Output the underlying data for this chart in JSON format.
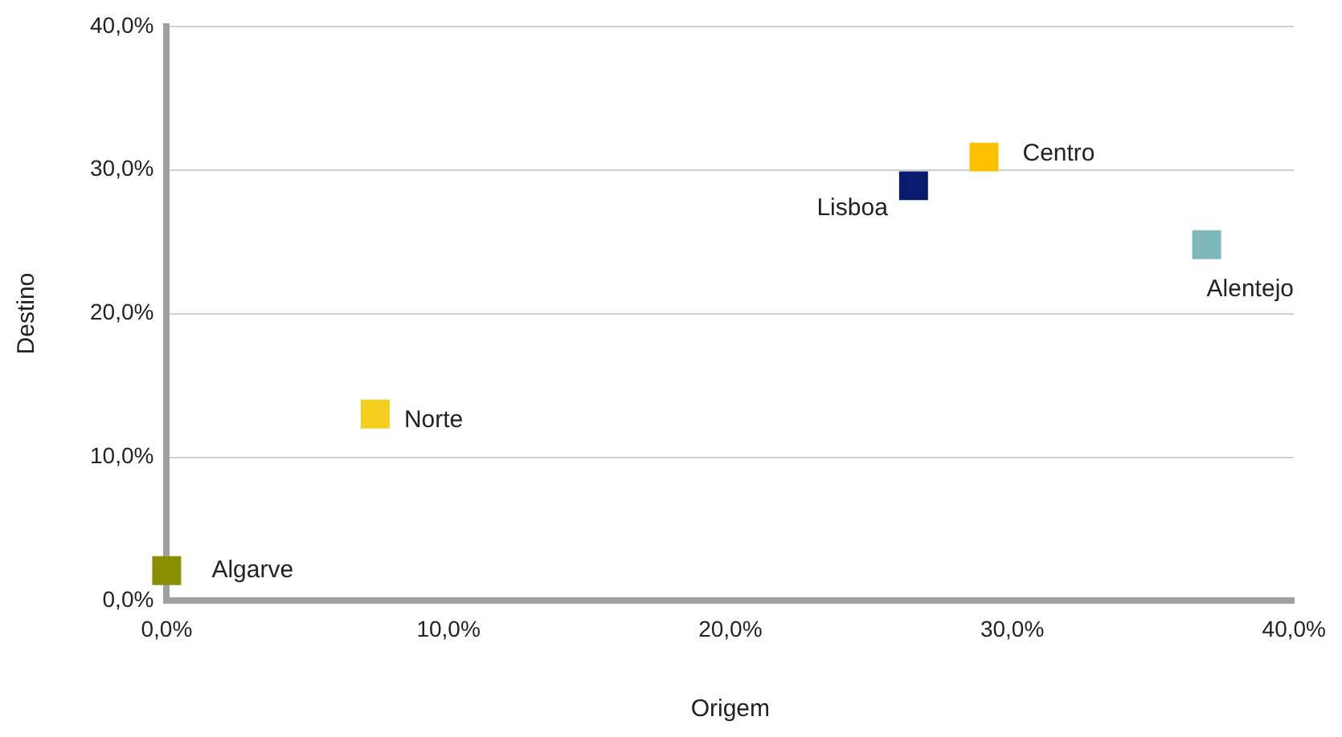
{
  "chart_data": {
    "type": "scatter",
    "xlabel": "Origem",
    "ylabel": "Destino",
    "marker": "square",
    "grid": "y",
    "legend": false,
    "xlim": [
      0,
      40
    ],
    "ylim": [
      0,
      40
    ],
    "xticks": [
      {
        "value": 0,
        "label": "0,0%"
      },
      {
        "value": 10,
        "label": "10,0%"
      },
      {
        "value": 20,
        "label": "20,0%"
      },
      {
        "value": 30,
        "label": "30,0%"
      },
      {
        "value": 40,
        "label": "40,0%"
      }
    ],
    "yticks": [
      {
        "value": 0,
        "label": "0,0%"
      },
      {
        "value": 10,
        "label": "10,0%"
      },
      {
        "value": 20,
        "label": "20,0%"
      },
      {
        "value": 30,
        "label": "30,0%"
      },
      {
        "value": 40,
        "label": "40,0%"
      }
    ],
    "series": [
      {
        "name": "Algarve",
        "color": "#8a8f00",
        "x": [
          0
        ],
        "values": [
          2.1
        ]
      },
      {
        "name": "Norte",
        "color": "#f5cf1e",
        "x": [
          7.4
        ],
        "values": [
          13.0
        ]
      },
      {
        "name": "Lisboa",
        "color": "#0a1a6e",
        "x": [
          26.5
        ],
        "values": [
          28.9
        ]
      },
      {
        "name": "Centro",
        "color": "#ffc000",
        "x": [
          29.0
        ],
        "values": [
          30.9
        ]
      },
      {
        "name": "Alentejo",
        "color": "#7fb8b8",
        "x": [
          36.9
        ],
        "values": [
          24.8
        ]
      }
    ]
  }
}
